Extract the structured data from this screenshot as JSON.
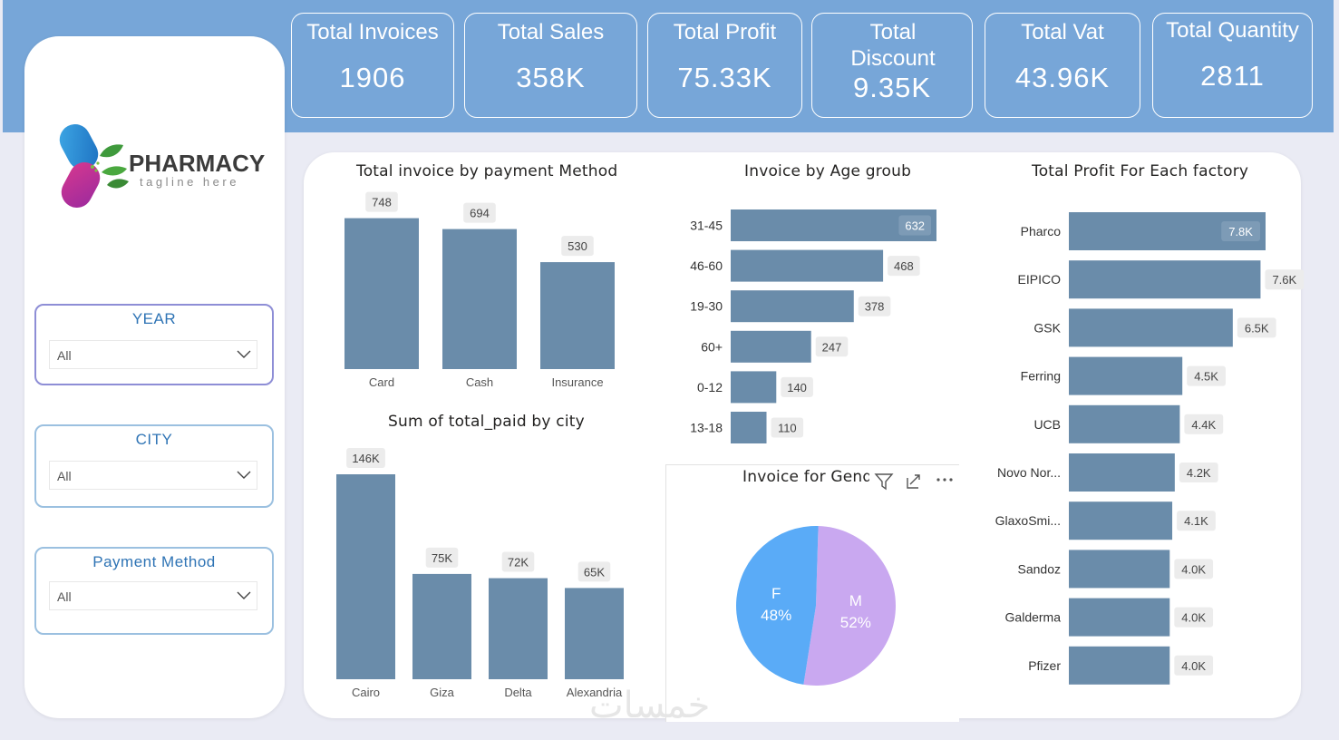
{
  "kpis": [
    {
      "title": "Total Invoices",
      "value": "1906"
    },
    {
      "title": "Total Sales",
      "value": "358K"
    },
    {
      "title": "Total Profit",
      "value": "75.33K"
    },
    {
      "title": "Total Discount",
      "value": "9.35K"
    },
    {
      "title": "Total Vat",
      "value": "43.96K"
    },
    {
      "title": "Total Quantity",
      "value": "2811"
    }
  ],
  "logo": {
    "name": "PHARMACY",
    "tagline": "tagline here"
  },
  "filters": [
    {
      "label": "YEAR",
      "value": "All"
    },
    {
      "label": "CITY",
      "value": "All"
    },
    {
      "label": "Payment Method",
      "value": "All"
    }
  ],
  "colors": {
    "bar": "#6a8caa",
    "female": "#5aabf7",
    "male": "#c9a8f0",
    "header": "#77a6d8"
  },
  "watermark": "خمسات",
  "chart_data": [
    {
      "id": "payment",
      "type": "bar",
      "title": "Total invoice by payment Method",
      "categories": [
        "Card",
        "Cash",
        "Insurance"
      ],
      "values": [
        748,
        694,
        530
      ],
      "labels": [
        "748",
        "694",
        "530"
      ],
      "ylim": [
        0,
        800
      ]
    },
    {
      "id": "age",
      "type": "bar",
      "orientation": "horizontal",
      "title": "Invoice by Age groub",
      "categories": [
        "31-45",
        "46-60",
        "19-30",
        "60+",
        "0-12",
        "13-18"
      ],
      "values": [
        632,
        468,
        378,
        247,
        140,
        110
      ],
      "labels": [
        "632",
        "468",
        "378",
        "247",
        "140",
        "110"
      ],
      "xlim": [
        0,
        632
      ]
    },
    {
      "id": "factory",
      "type": "bar",
      "orientation": "horizontal",
      "title": "Total Profit For Each factory",
      "categories": [
        "Pharco",
        "EIPICO",
        "GSK",
        "Ferring",
        "UCB",
        "Novo Nor...",
        "GlaxoSmi...",
        "Sandoz",
        "Galderma",
        "Pfizer"
      ],
      "values": [
        7.8,
        7.6,
        6.5,
        4.5,
        4.4,
        4.2,
        4.1,
        4.0,
        4.0,
        4.0
      ],
      "labels": [
        "7.8K",
        "7.6K",
        "6.5K",
        "4.5K",
        "4.4K",
        "4.2K",
        "4.1K",
        "4.0K",
        "4.0K",
        "4.0K"
      ],
      "xlim": [
        0,
        7.8
      ]
    },
    {
      "id": "city",
      "type": "bar",
      "title": "Sum of total_paid by city",
      "categories": [
        "Cairo",
        "Giza",
        "Delta",
        "Alexandria"
      ],
      "values": [
        146,
        75,
        72,
        65
      ],
      "labels": [
        "146K",
        "75K",
        "72K",
        "65K"
      ],
      "ylim": [
        0,
        146
      ]
    },
    {
      "id": "gender",
      "type": "pie",
      "title": "Invoice for Gend",
      "slices": [
        {
          "name": "F",
          "pct": "48%",
          "value": 48
        },
        {
          "name": "M",
          "pct": "52%",
          "value": 52
        }
      ]
    }
  ]
}
